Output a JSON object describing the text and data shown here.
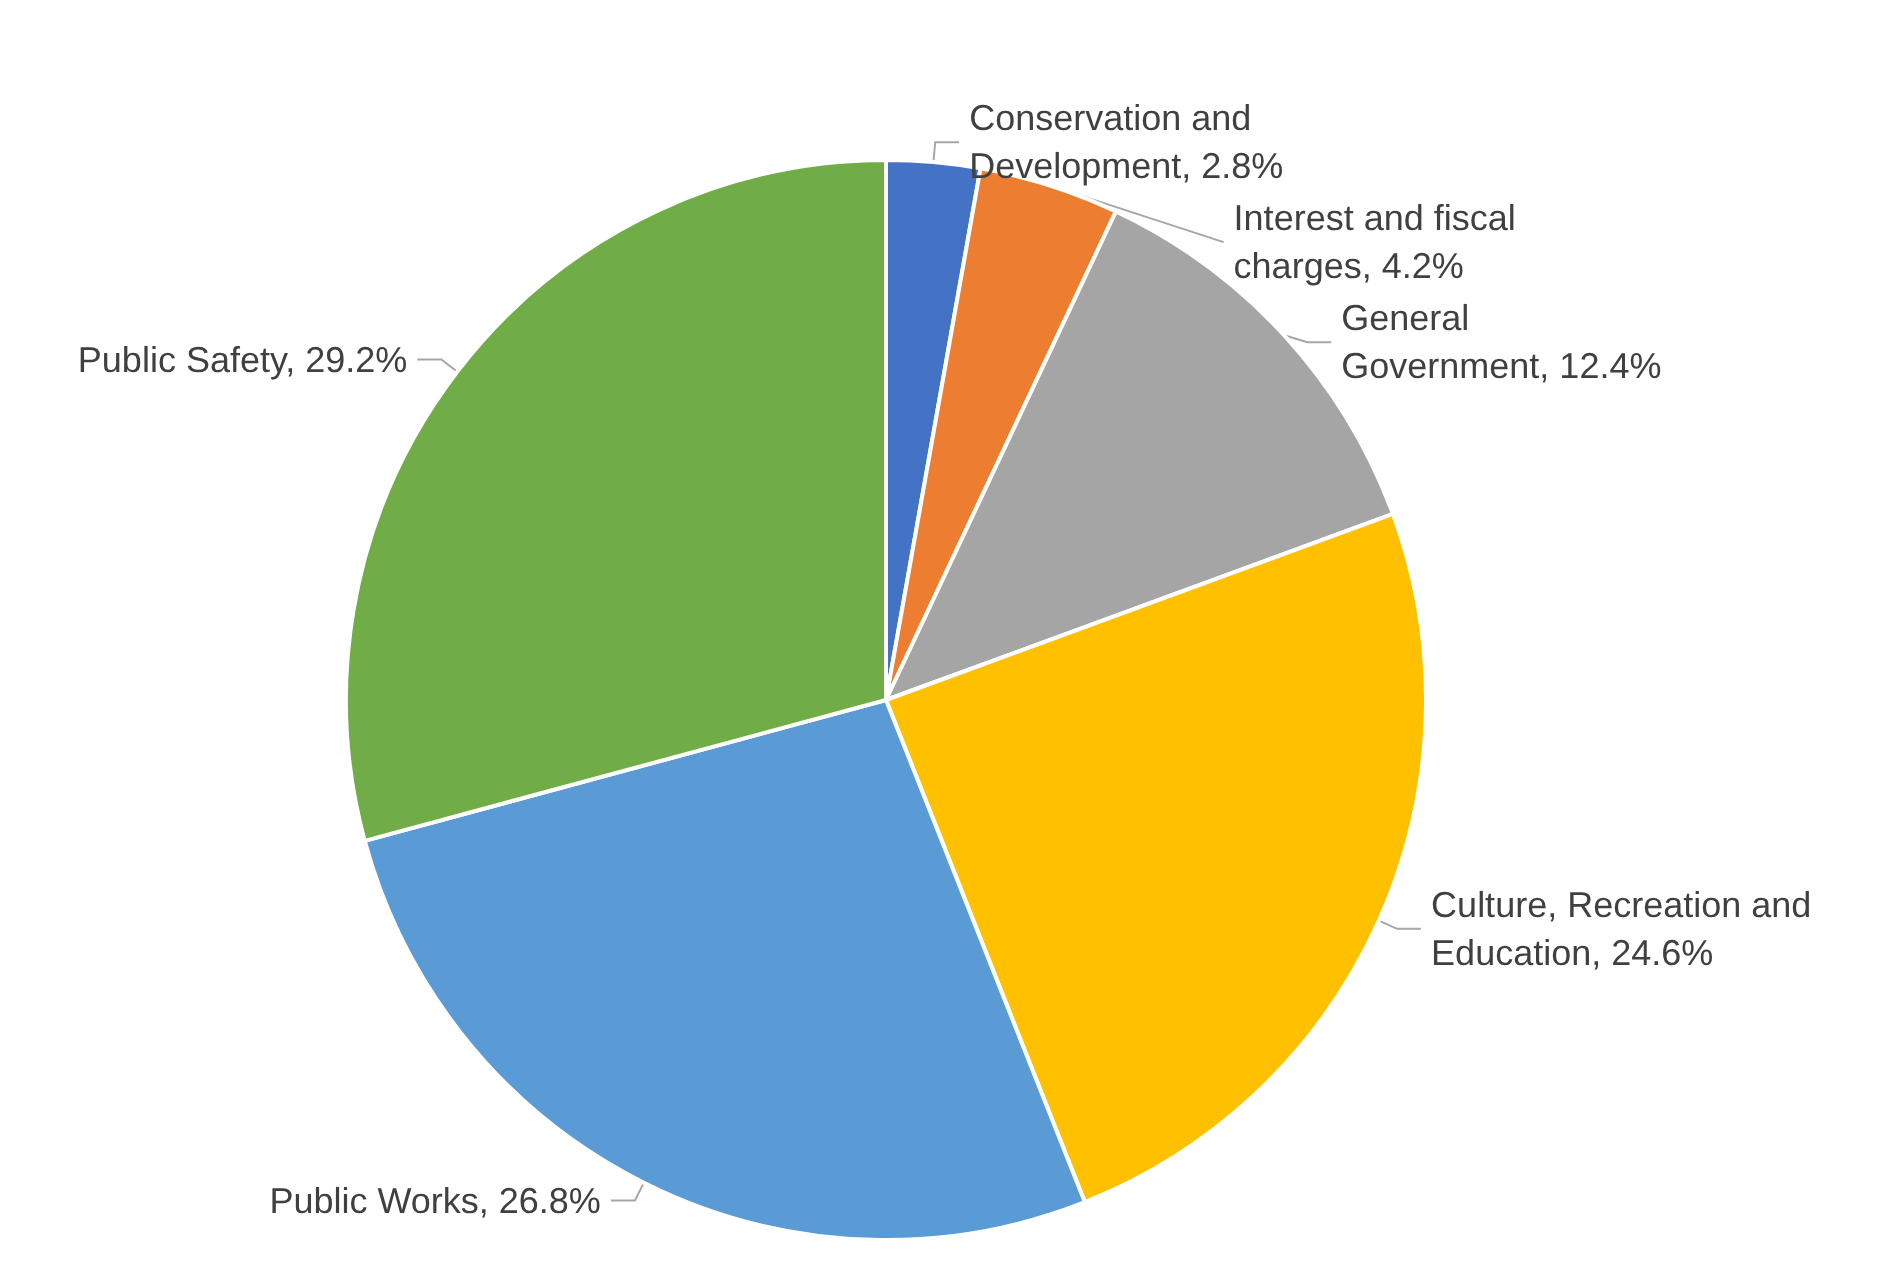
{
  "chart_data": {
    "type": "pie",
    "categories": [
      "Conservation and Development",
      "Interest and fiscal charges",
      "General Government",
      "Culture, Recreation and Education",
      "Public Works",
      "Public Safety"
    ],
    "values": [
      2.8,
      4.2,
      12.4,
      24.6,
      26.8,
      29.2
    ],
    "value_labels": [
      "2.8%",
      "4.2%",
      "12.4%",
      "24.6%",
      "26.8%",
      "29.2%"
    ],
    "colors": [
      "#4472c4",
      "#ed7d31",
      "#a5a5a5",
      "#ffc000",
      "#5b9bd5",
      "#70ad47"
    ],
    "legend": false
  }
}
